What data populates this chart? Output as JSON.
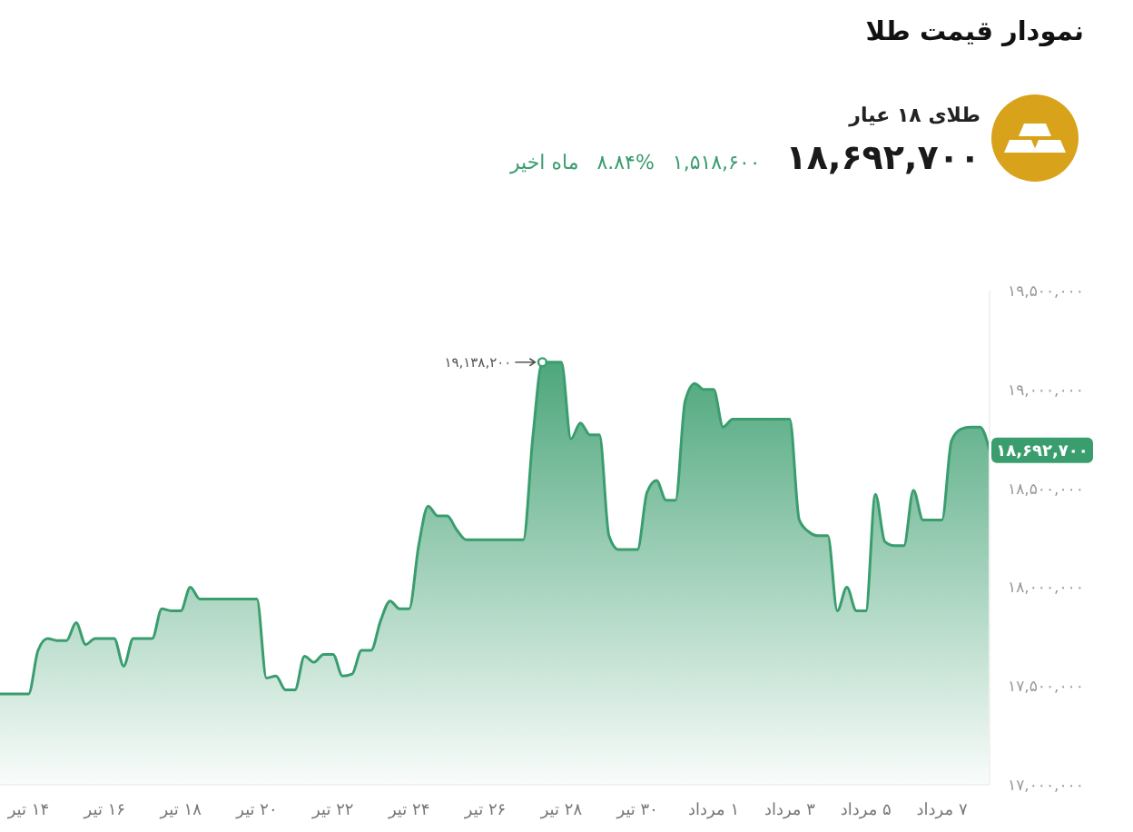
{
  "chart_data": {
    "type": "area",
    "title": "نمودار قیمت طلا",
    "subtitle": "طلای ۱۸ عیار",
    "annotations": [
      "۱۸,۶۹۲,۷۰۰",
      "۱,۵۱۸,۶۰۰",
      "۸.۸۴%",
      "ماه اخیر",
      "۱۹,۱۳۸,۲۰۰",
      "۱۸,۶۹۲,۷۰۰"
    ],
    "categories": [
      null,
      null,
      null,
      "۱۴ تیر",
      null,
      null,
      null,
      null,
      null,
      null,
      null,
      "۱۶ تیر",
      null,
      null,
      null,
      null,
      null,
      null,
      null,
      "۱۸ تیر",
      null,
      null,
      null,
      null,
      null,
      null,
      null,
      "۲۰ تیر",
      null,
      null,
      null,
      null,
      null,
      null,
      null,
      "۲۲ تیر",
      null,
      null,
      null,
      null,
      null,
      null,
      null,
      "۲۴ تیر",
      null,
      null,
      null,
      null,
      null,
      null,
      null,
      "۲۶ تیر",
      null,
      null,
      null,
      null,
      null,
      null,
      null,
      "۲۸ تیر",
      null,
      null,
      null,
      null,
      null,
      null,
      null,
      "۳۰ تیر",
      null,
      null,
      null,
      null,
      null,
      null,
      null,
      "۱ مرداد",
      null,
      null,
      null,
      null,
      null,
      null,
      null,
      "۳ مرداد",
      null,
      null,
      null,
      null,
      null,
      null,
      null,
      "۵ مرداد",
      null,
      null,
      null,
      null,
      null,
      null,
      null,
      "۷ مرداد",
      null,
      null,
      null,
      null,
      null
    ],
    "series": [
      {
        "color": "#3a9d6e",
        "values": [
          17460000,
          17460000,
          17460000,
          17460000,
          17680000,
          17740000,
          17730000,
          17730000,
          17820000,
          17710000,
          17740000,
          17740000,
          17740000,
          17600000,
          17740000,
          17740000,
          17740000,
          17890000,
          17880000,
          17880000,
          18000000,
          17940000,
          17940000,
          17940000,
          17940000,
          17940000,
          17940000,
          17940000,
          17540000,
          17550000,
          17480000,
          17480000,
          17650000,
          17620000,
          17660000,
          17660000,
          17550000,
          17560000,
          17680000,
          17680000,
          17830000,
          17930000,
          17890000,
          17890000,
          18210000,
          18410000,
          18360000,
          18360000,
          18290000,
          18240000,
          18240000,
          18240000,
          18240000,
          18240000,
          18240000,
          18240000,
          18760000,
          19138200,
          19138200,
          19138200,
          18750000,
          18830000,
          18770000,
          18770000,
          18260000,
          18190000,
          18190000,
          18190000,
          18480000,
          18540000,
          18440000,
          18440000,
          18940000,
          19030000,
          19000000,
          19000000,
          18810000,
          18850000,
          18850000,
          18850000,
          18850000,
          18850000,
          18850000,
          18850000,
          18340000,
          18280000,
          18260000,
          18260000,
          17880000,
          18000000,
          17880000,
          17880000,
          18470000,
          18230000,
          18210000,
          18210000,
          18490000,
          18340000,
          18340000,
          18340000,
          18740000,
          18800000,
          18810000,
          18810000,
          18692700
        ]
      }
    ],
    "ylim": [
      17000000,
      19500000
    ],
    "yticks": [
      {
        "value": 17000000,
        "label": "۱۷,۰۰۰,۰۰۰"
      },
      {
        "value": 17500000,
        "label": "۱۷,۵۰۰,۰۰۰"
      },
      {
        "value": 18000000,
        "label": "۱۸,۰۰۰,۰۰۰"
      },
      {
        "value": 18500000,
        "label": "۱۸,۵۰۰,۰۰۰"
      },
      {
        "value": 19000000,
        "label": "۱۹,۰۰۰,۰۰۰"
      },
      {
        "value": 19500000,
        "label": "۱۹,۵۰۰,۰۰۰"
      }
    ]
  }
}
